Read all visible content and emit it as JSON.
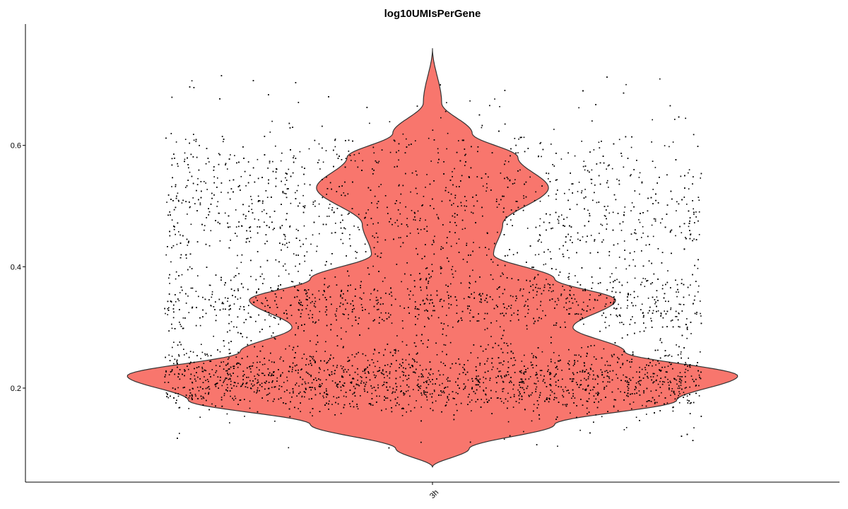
{
  "chart_data": {
    "type": "violin",
    "title": "log10UMIsPerGene",
    "xlabel": "",
    "ylabel": "",
    "categories": [
      "3h"
    ],
    "ylim": [
      0.045,
      0.8
    ],
    "yticks": [
      0.2,
      0.4,
      0.6
    ],
    "grid": false,
    "legend": "none",
    "violin_fill": "#F8766D",
    "violin_stroke": "#333333",
    "point_color": "#000000",
    "data_range": [
      0.07,
      0.76
    ],
    "density_profile": [
      {
        "y": 0.07,
        "rel_width": 0.0
      },
      {
        "y": 0.1,
        "rel_width": 0.12
      },
      {
        "y": 0.14,
        "rel_width": 0.4
      },
      {
        "y": 0.18,
        "rel_width": 0.8
      },
      {
        "y": 0.22,
        "rel_width": 1.0
      },
      {
        "y": 0.26,
        "rel_width": 0.63
      },
      {
        "y": 0.3,
        "rel_width": 0.46
      },
      {
        "y": 0.345,
        "rel_width": 0.6
      },
      {
        "y": 0.38,
        "rel_width": 0.4
      },
      {
        "y": 0.42,
        "rel_width": 0.2
      },
      {
        "y": 0.47,
        "rel_width": 0.23
      },
      {
        "y": 0.53,
        "rel_width": 0.38
      },
      {
        "y": 0.58,
        "rel_width": 0.28
      },
      {
        "y": 0.62,
        "rel_width": 0.13
      },
      {
        "y": 0.67,
        "rel_width": 0.03
      },
      {
        "y": 0.76,
        "rel_width": 0.0
      }
    ]
  }
}
